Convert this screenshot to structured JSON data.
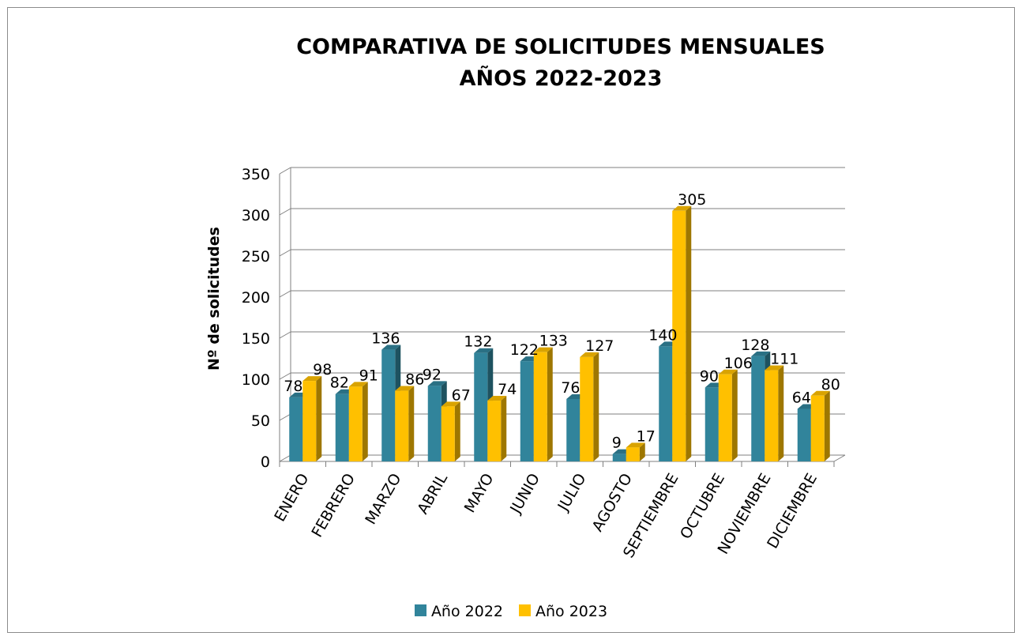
{
  "chart_data": {
    "type": "bar",
    "title": "COMPARATIVA DE SOLICITUDES MENSUALES",
    "subtitle": "AÑOS 2022-2023",
    "xlabel": "",
    "ylabel": "Nº de solicitudes",
    "ylim": [
      0,
      350
    ],
    "yticks": [
      0,
      50,
      100,
      150,
      200,
      250,
      300,
      350
    ],
    "grid": true,
    "legend": "bottom",
    "categories": [
      "ENERO",
      "FEBRERO",
      "MARZO",
      "ABRIL",
      "MAYO",
      "JUNIO",
      "JULIO",
      "AGOSTO",
      "SEPTIEMBRE",
      "OCTUBRE",
      "NOVIEMBRE",
      "DICIEMBRE"
    ],
    "series": [
      {
        "name": "Año 2022",
        "color": "#31849b",
        "values": [
          78,
          82,
          136,
          92,
          132,
          122,
          76,
          9,
          140,
          90,
          128,
          64
        ]
      },
      {
        "name": "Año 2023",
        "color": "#ffc000",
        "values": [
          98,
          91,
          86,
          67,
          74,
          133,
          127,
          17,
          305,
          106,
          111,
          80
        ]
      }
    ]
  }
}
